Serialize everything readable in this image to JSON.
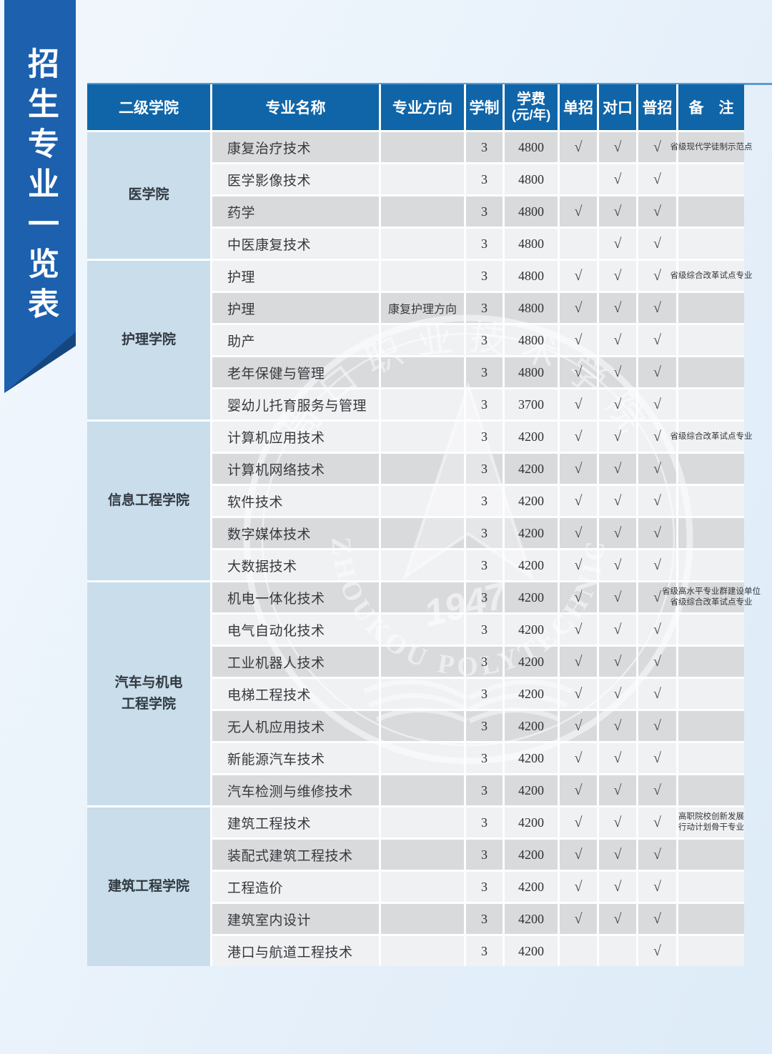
{
  "page": {
    "title_banner": "招生专业一览表"
  },
  "watermark": {
    "ring_text_top": "周口职业技术学院",
    "ring_text_bottom": "ZHOUKOU POLYTECHNIC",
    "year": "1947"
  },
  "symbols": {
    "check": "√"
  },
  "colors": {
    "header_blue": "#0f65a8",
    "ribbon_blue": "#1c60ae",
    "ribbon_fold_navy": "#14477e",
    "college_cell_blue": "#c9ddeb",
    "row_dark": "#d9dadc",
    "row_light": "#f0f1f3"
  },
  "table": {
    "headers": [
      {
        "label": "二级学院"
      },
      {
        "label": "专业名称"
      },
      {
        "label": "专业方向"
      },
      {
        "label": "学制"
      },
      {
        "label": "学费",
        "sub": "(元/年)"
      },
      {
        "label": "单招"
      },
      {
        "label": "对口"
      },
      {
        "label": "普招"
      },
      {
        "label": "备　注"
      }
    ],
    "sections": [
      {
        "college": "医学院",
        "rows": [
          {
            "major": "康复治疗技术",
            "direction": "",
            "years": "3",
            "fee": "4800",
            "dz": true,
            "dk": true,
            "pz": true,
            "note": [
              "省级现代学徒制示范点"
            ],
            "shade": "dark"
          },
          {
            "major": "医学影像技术",
            "direction": "",
            "years": "3",
            "fee": "4800",
            "dz": false,
            "dk": true,
            "pz": true,
            "note": [],
            "shade": "light"
          },
          {
            "major": "药学",
            "direction": "",
            "years": "3",
            "fee": "4800",
            "dz": true,
            "dk": true,
            "pz": true,
            "note": [],
            "shade": "dark"
          },
          {
            "major": "中医康复技术",
            "direction": "",
            "years": "3",
            "fee": "4800",
            "dz": false,
            "dk": true,
            "pz": true,
            "note": [],
            "shade": "light"
          }
        ]
      },
      {
        "college": "护理学院",
        "rows": [
          {
            "major": "护理",
            "direction": "",
            "years": "3",
            "fee": "4800",
            "dz": true,
            "dk": true,
            "pz": true,
            "note": [
              "省级综合改革试点专业"
            ],
            "shade": "light"
          },
          {
            "major": "护理",
            "direction": "康复护理方向",
            "years": "3",
            "fee": "4800",
            "dz": true,
            "dk": true,
            "pz": true,
            "note": [],
            "shade": "dark"
          },
          {
            "major": "助产",
            "direction": "",
            "years": "3",
            "fee": "4800",
            "dz": true,
            "dk": true,
            "pz": true,
            "note": [],
            "shade": "light"
          },
          {
            "major": "老年保健与管理",
            "direction": "",
            "years": "3",
            "fee": "4800",
            "dz": true,
            "dk": true,
            "pz": true,
            "note": [],
            "shade": "dark"
          },
          {
            "major": "婴幼儿托育服务与管理",
            "direction": "",
            "years": "3",
            "fee": "3700",
            "dz": true,
            "dk": true,
            "pz": true,
            "note": [],
            "shade": "light"
          }
        ]
      },
      {
        "college": "信息工程学院",
        "rows": [
          {
            "major": "计算机应用技术",
            "direction": "",
            "years": "3",
            "fee": "4200",
            "dz": true,
            "dk": true,
            "pz": true,
            "note": [
              "省级综合改革试点专业"
            ],
            "shade": "light"
          },
          {
            "major": "计算机网络技术",
            "direction": "",
            "years": "3",
            "fee": "4200",
            "dz": true,
            "dk": true,
            "pz": true,
            "note": [],
            "shade": "dark"
          },
          {
            "major": "软件技术",
            "direction": "",
            "years": "3",
            "fee": "4200",
            "dz": true,
            "dk": true,
            "pz": true,
            "note": [],
            "shade": "light"
          },
          {
            "major": "数字媒体技术",
            "direction": "",
            "years": "3",
            "fee": "4200",
            "dz": true,
            "dk": true,
            "pz": true,
            "note": [],
            "shade": "dark"
          },
          {
            "major": "大数据技术",
            "direction": "",
            "years": "3",
            "fee": "4200",
            "dz": true,
            "dk": true,
            "pz": true,
            "note": [],
            "shade": "light"
          }
        ]
      },
      {
        "college": "汽车与机电\n工程学院",
        "rows": [
          {
            "major": "机电一体化技术",
            "direction": "",
            "years": "3",
            "fee": "4200",
            "dz": true,
            "dk": true,
            "pz": true,
            "note": [
              "省级高水平专业群建设单位",
              "省级综合改革试点专业"
            ],
            "shade": "dark"
          },
          {
            "major": "电气自动化技术",
            "direction": "",
            "years": "3",
            "fee": "4200",
            "dz": true,
            "dk": true,
            "pz": true,
            "note": [],
            "shade": "light"
          },
          {
            "major": "工业机器人技术",
            "direction": "",
            "years": "3",
            "fee": "4200",
            "dz": true,
            "dk": true,
            "pz": true,
            "note": [],
            "shade": "dark"
          },
          {
            "major": "电梯工程技术",
            "direction": "",
            "years": "3",
            "fee": "4200",
            "dz": true,
            "dk": true,
            "pz": true,
            "note": [],
            "shade": "light"
          },
          {
            "major": "无人机应用技术",
            "direction": "",
            "years": "3",
            "fee": "4200",
            "dz": true,
            "dk": true,
            "pz": true,
            "note": [],
            "shade": "dark"
          },
          {
            "major": "新能源汽车技术",
            "direction": "",
            "years": "3",
            "fee": "4200",
            "dz": true,
            "dk": true,
            "pz": true,
            "note": [],
            "shade": "light"
          },
          {
            "major": "汽车检测与维修技术",
            "direction": "",
            "years": "3",
            "fee": "4200",
            "dz": true,
            "dk": true,
            "pz": true,
            "note": [],
            "shade": "dark"
          }
        ]
      },
      {
        "college": "建筑工程学院",
        "rows": [
          {
            "major": "建筑工程技术",
            "direction": "",
            "years": "3",
            "fee": "4200",
            "dz": true,
            "dk": true,
            "pz": true,
            "note": [
              "高职院校创新发展",
              "行动计划骨干专业"
            ],
            "shade": "light"
          },
          {
            "major": "装配式建筑工程技术",
            "direction": "",
            "years": "3",
            "fee": "4200",
            "dz": true,
            "dk": true,
            "pz": true,
            "note": [],
            "shade": "dark"
          },
          {
            "major": "工程造价",
            "direction": "",
            "years": "3",
            "fee": "4200",
            "dz": true,
            "dk": true,
            "pz": true,
            "note": [],
            "shade": "light"
          },
          {
            "major": "建筑室内设计",
            "direction": "",
            "years": "3",
            "fee": "4200",
            "dz": true,
            "dk": true,
            "pz": true,
            "note": [],
            "shade": "dark"
          },
          {
            "major": "港口与航道工程技术",
            "direction": "",
            "years": "3",
            "fee": "4200",
            "dz": false,
            "dk": false,
            "pz": true,
            "note": [],
            "shade": "light"
          }
        ]
      }
    ]
  }
}
